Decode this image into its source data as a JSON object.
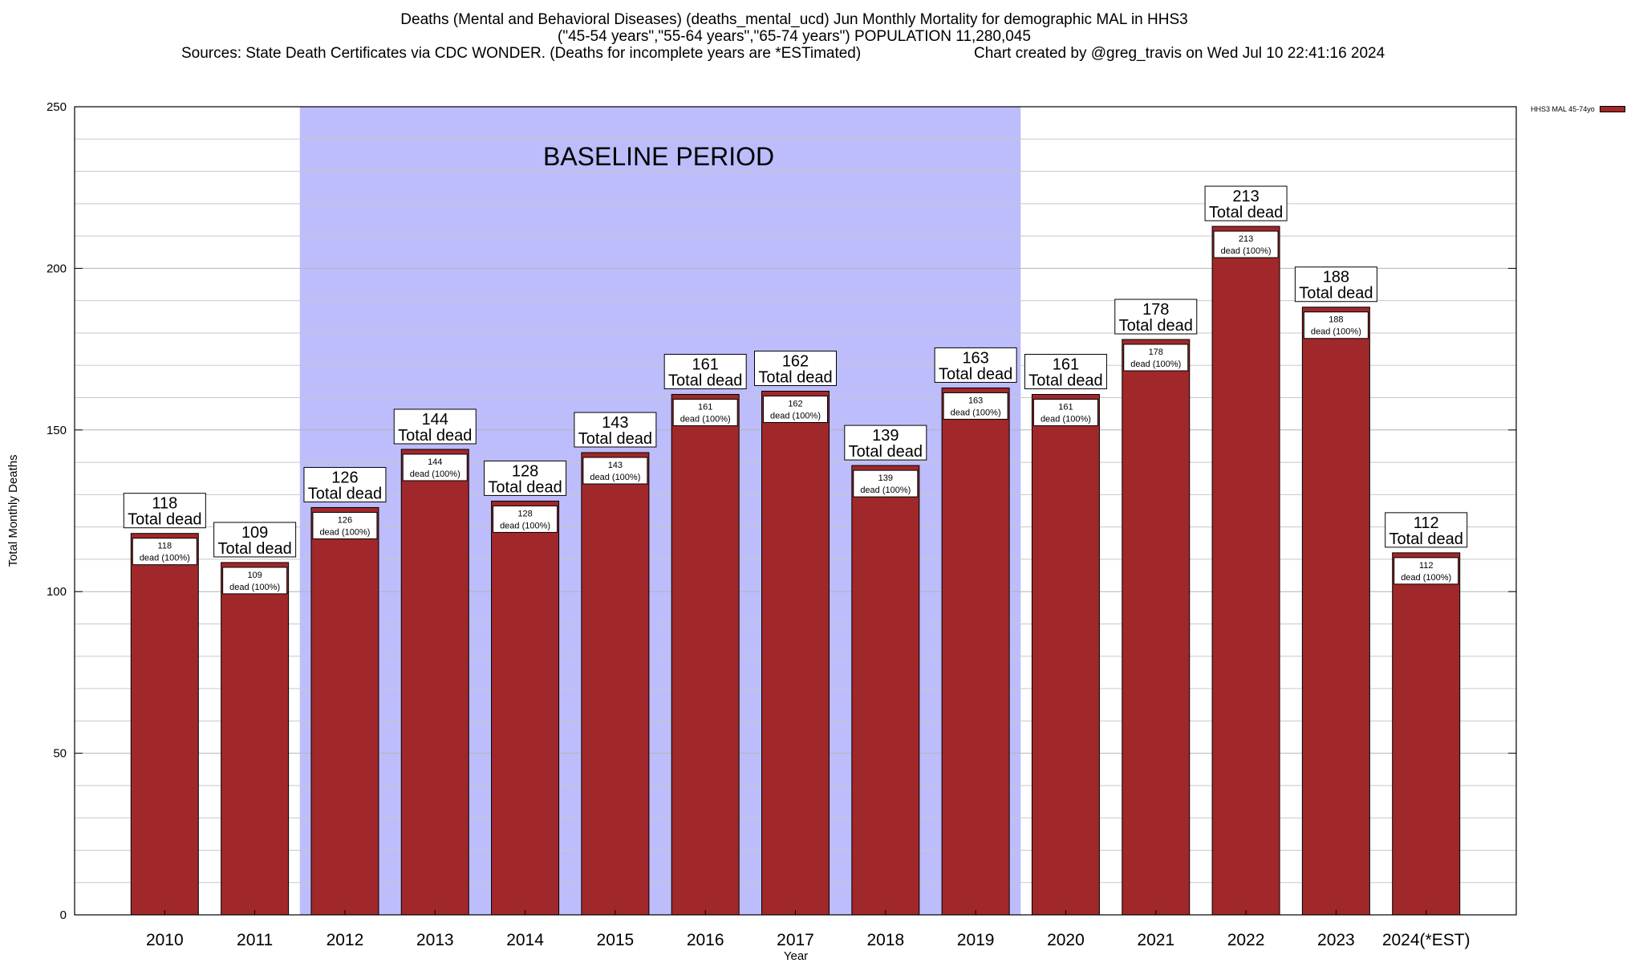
{
  "title": {
    "line1": "Deaths (Mental and Behavioral Diseases) (deaths_mental_ucd) Jun Monthly Mortality for demographic MAL in HHS3",
    "line2": "(\"45-54 years\",\"55-64 years\",\"65-74 years\") POPULATION 11,280,045",
    "sources": "Sources: State Death Certificates via CDC WONDER. (Deaths for incomplete years are *ESTimated)",
    "credit": "Chart created by @greg_travis on Wed Jul 10 22:41:16 2024"
  },
  "legend": {
    "label": "HHS3 MAL 45-74yo",
    "color": "#a0282a"
  },
  "baseline_label": "BASELINE PERIOD",
  "colors": {
    "bar": "#a0282a",
    "baseline": "#bdbdfb",
    "grid": "#c8c8c8"
  },
  "chart_data": {
    "type": "bar",
    "title": "Deaths (Mental and Behavioral Diseases) (deaths_mental_ucd) Jun Monthly Mortality for demographic MAL in HHS3",
    "xlabel": "Year",
    "ylabel": "Total Monthly Deaths",
    "ylim": [
      0,
      250
    ],
    "yticks": [
      0,
      50,
      100,
      150,
      200,
      250
    ],
    "categories": [
      "2010",
      "2011",
      "2012",
      "2013",
      "2014",
      "2015",
      "2016",
      "2017",
      "2018",
      "2019",
      "2020",
      "2021",
      "2022",
      "2023",
      "2024(*EST)"
    ],
    "series": [
      {
        "name": "HHS3 MAL 45-74yo",
        "values": [
          118,
          109,
          126,
          144,
          128,
          143,
          161,
          162,
          139,
          163,
          161,
          178,
          213,
          188,
          112
        ]
      }
    ],
    "baseline_period": [
      "2012",
      "2019"
    ],
    "total_label": "Total dead",
    "inner_label": "dead (100%)",
    "grid": true,
    "legend_position": "top-right"
  }
}
